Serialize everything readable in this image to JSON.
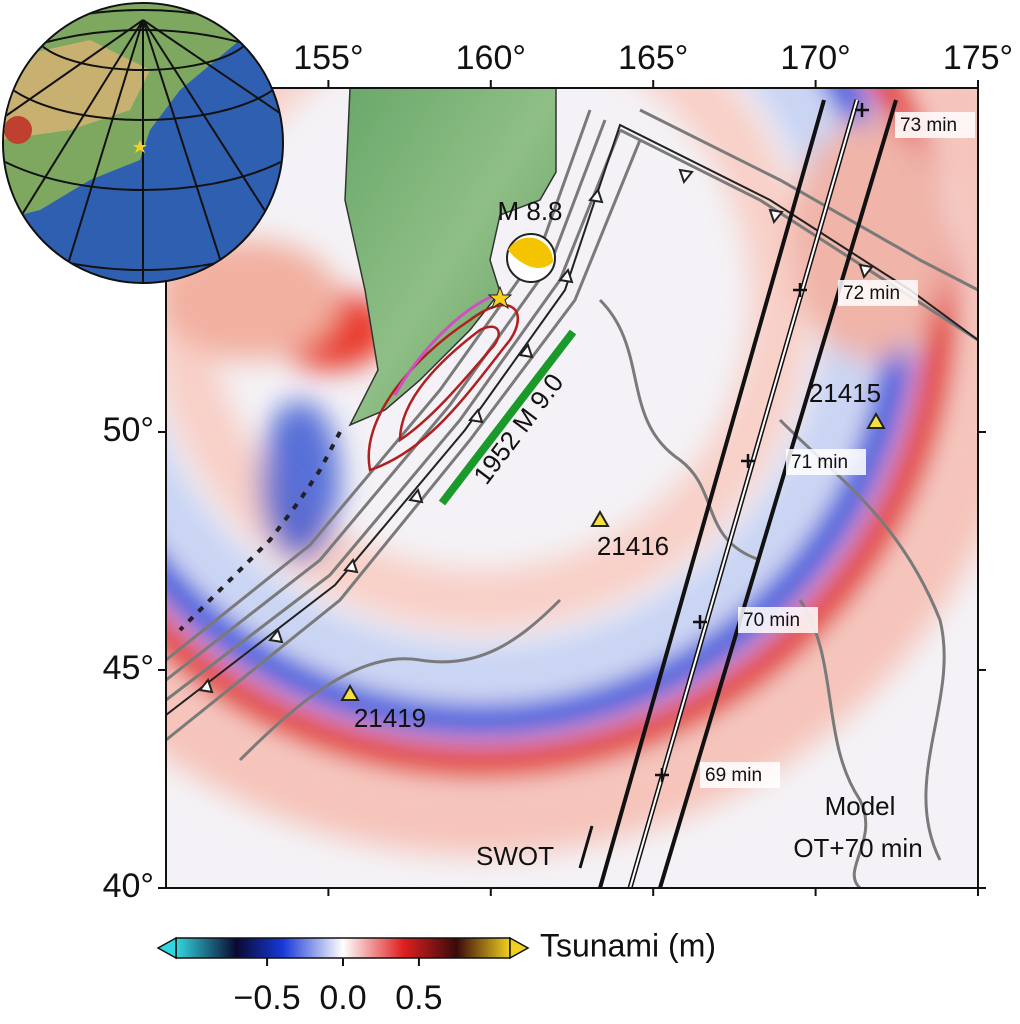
{
  "map": {
    "projection": "mercator",
    "xlim": [
      150,
      175
    ],
    "ylim": [
      40,
      56.4
    ],
    "xticks": [
      {
        "value": 155,
        "label": "155°"
      },
      {
        "value": 160,
        "label": "160°"
      },
      {
        "value": 165,
        "label": "165°"
      },
      {
        "value": 170,
        "label": "170°"
      },
      {
        "value": 175,
        "label": "175°"
      }
    ],
    "yticks": [
      {
        "value": 50,
        "label": "50°"
      },
      {
        "value": 45,
        "label": "45°"
      },
      {
        "value": 40,
        "label": "40°"
      }
    ],
    "annotations": {
      "epicenter": "M 8.8",
      "historic": "1952 M 9.0",
      "satellite": "SWOT",
      "model": [
        "Model",
        "OT+70 min"
      ]
    },
    "stations": [
      "21415",
      "21416",
      "21419"
    ],
    "swot_times": [
      "73 min",
      "72 min",
      "71 min",
      "70 min",
      "69 min"
    ],
    "colorbar": {
      "label": "Tsunami (m)",
      "clim": [
        -1.1,
        1.1
      ],
      "ticks": [
        {
          "value": -0.5,
          "label": "−0.5"
        },
        {
          "value": 0,
          "label": "0.0"
        },
        {
          "value": 0.5,
          "label": "0.5"
        }
      ]
    }
  }
}
